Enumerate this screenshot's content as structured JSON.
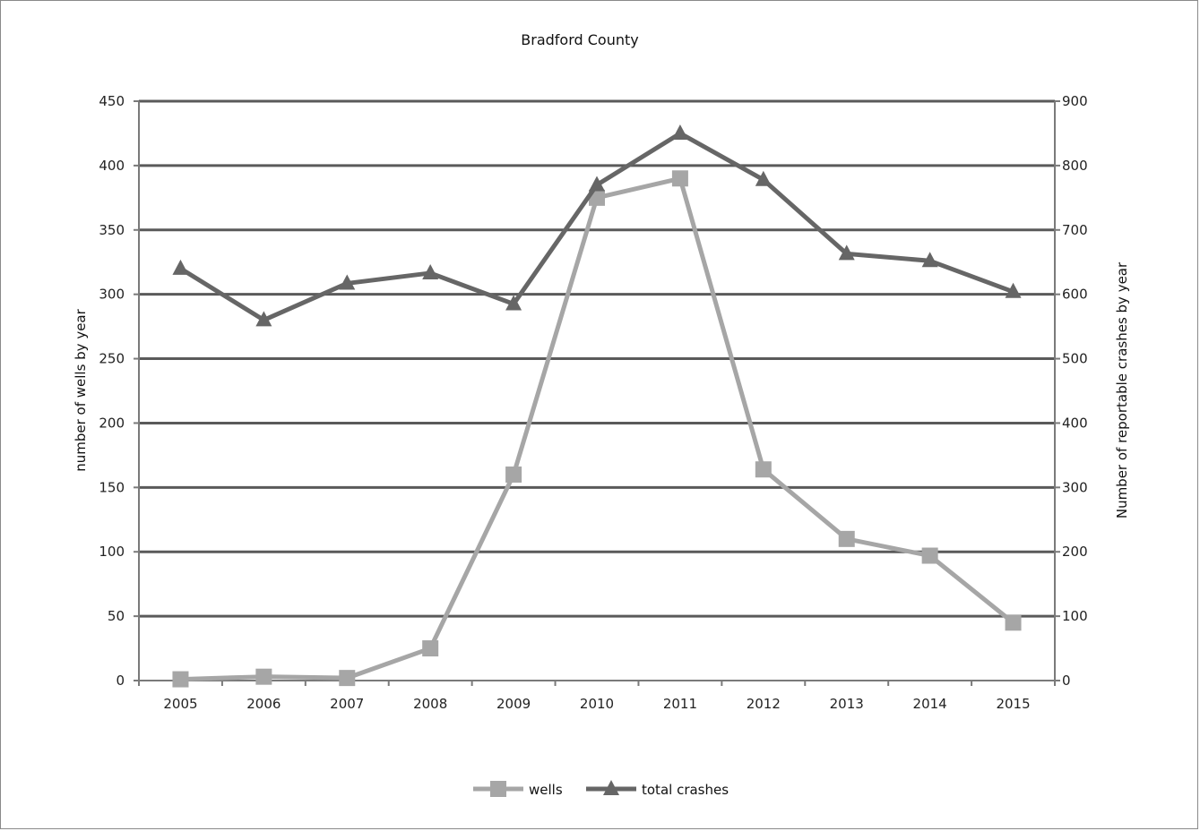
{
  "chart_data": {
    "type": "line",
    "title": "Bradford  County",
    "categories": [
      "2005",
      "2006",
      "2007",
      "2008",
      "2009",
      "2010",
      "2011",
      "2012",
      "2013",
      "2014",
      "2015"
    ],
    "y_left": {
      "label": "number of wells by year",
      "ylim": [
        0,
        450
      ],
      "ticks": [
        "0",
        "50",
        "100",
        "150",
        "200",
        "250",
        "300",
        "350",
        "400",
        "450"
      ]
    },
    "y_right": {
      "label": "Number of reportable crashes by year",
      "ylim": [
        0,
        900
      ],
      "ticks": [
        "0",
        "100",
        "200",
        "300",
        "400",
        "500",
        "600",
        "700",
        "800",
        "900"
      ]
    },
    "series": [
      {
        "name": "wells",
        "axis": "left",
        "marker": "square",
        "color": "#a6a6a6",
        "values": [
          1,
          3,
          2,
          25,
          160,
          375,
          390,
          164,
          110,
          97,
          45
        ]
      },
      {
        "name": "total crashes",
        "axis": "right",
        "marker": "triangle",
        "color": "#666666",
        "values": [
          640,
          560,
          617,
          633,
          585,
          770,
          850,
          778,
          663,
          652,
          604
        ]
      }
    ],
    "grid": true,
    "legend_position": "bottom"
  },
  "colors": {
    "gridline": "#5a5a5a",
    "axis": "#7a7a7a"
  }
}
